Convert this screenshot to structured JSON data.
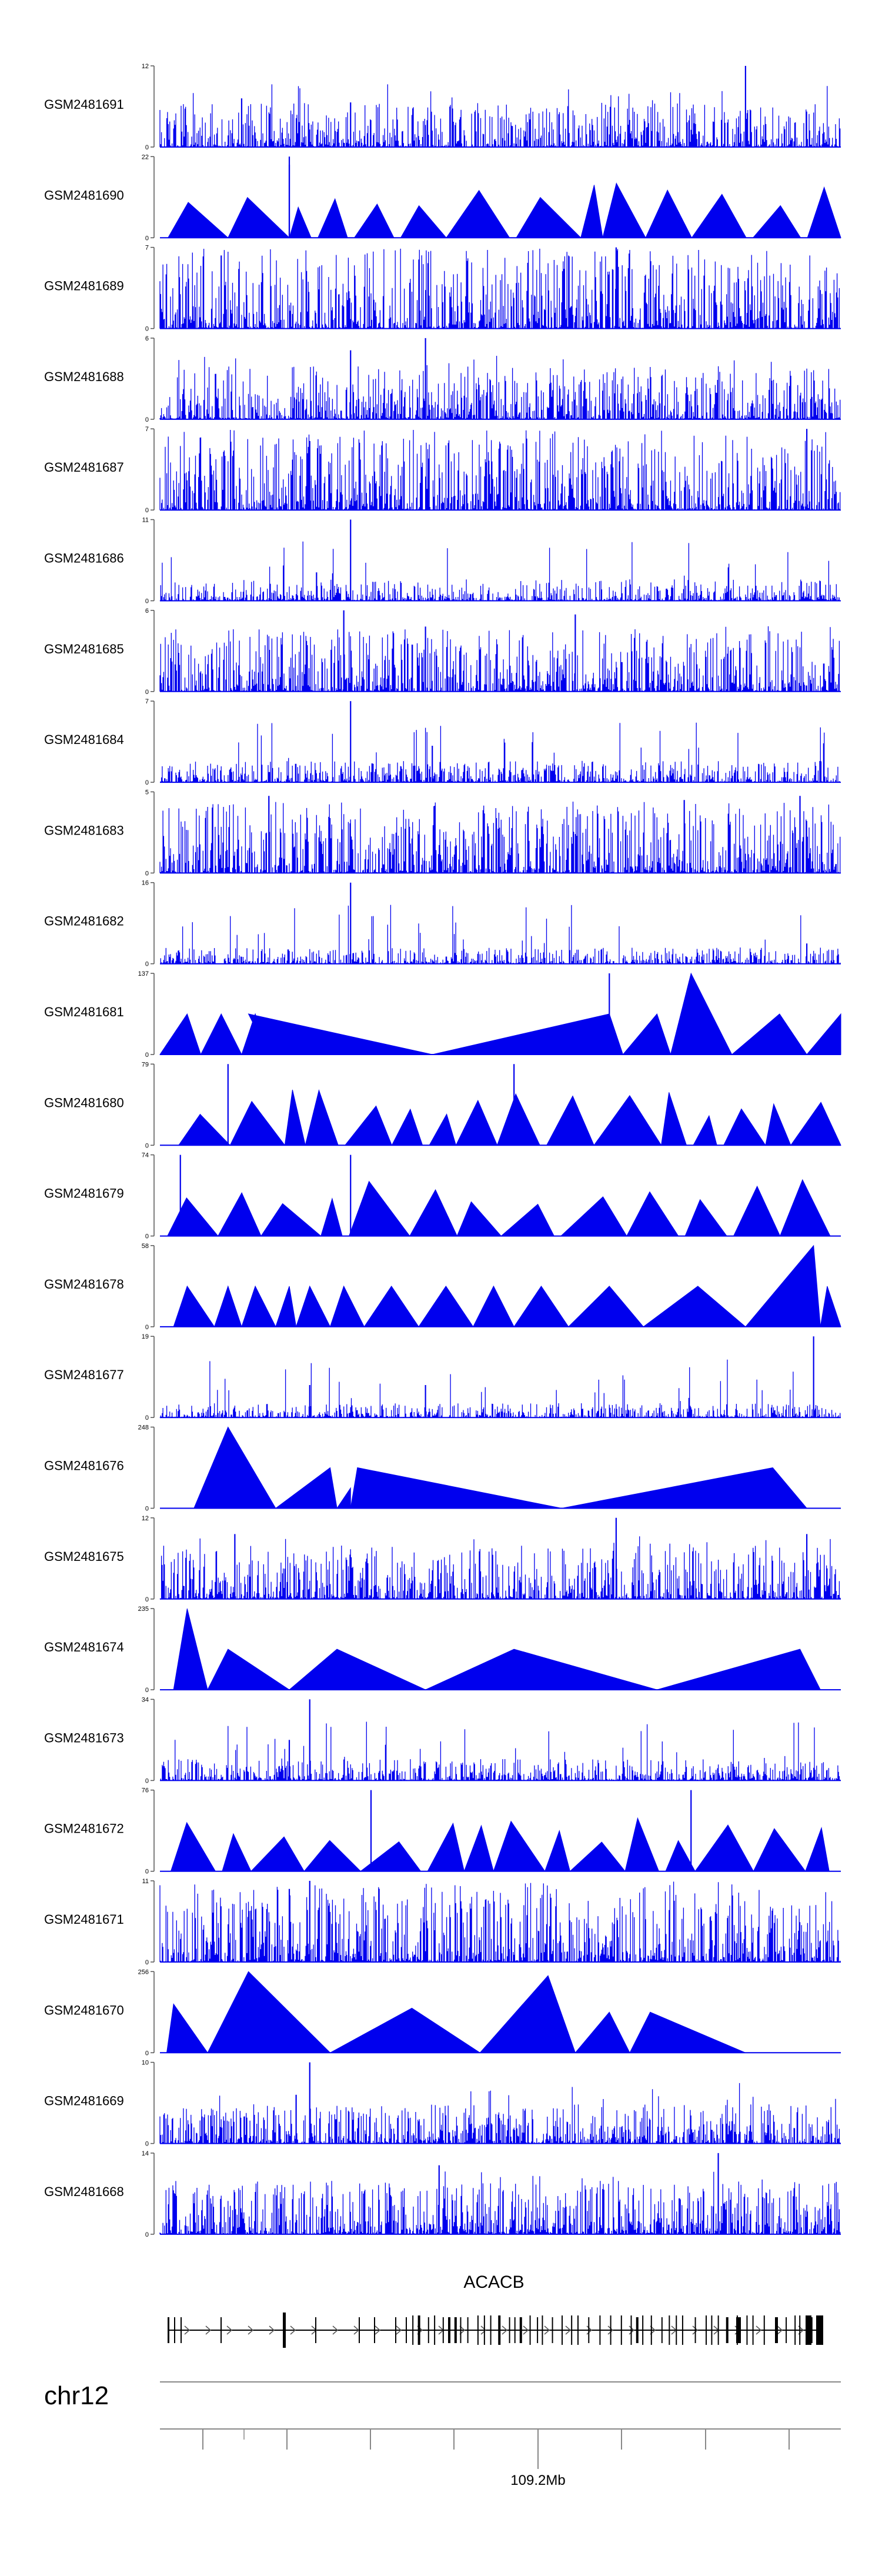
{
  "chart_data": {
    "type": "area",
    "title": "",
    "colors": {
      "signal": "#0000ee",
      "axis": "#555555",
      "gene": "#000000",
      "chrom_line": "#888888"
    },
    "tracks": [
      {
        "name": "GSM2481691",
        "ymax": "12",
        "ymin": "0",
        "style": "dense",
        "seed": 11,
        "base": 0.25,
        "peaks": [
          [
            0.86,
            1.0
          ],
          [
            0.28,
            0.55
          ],
          [
            0.12,
            0.6
          ]
        ]
      },
      {
        "name": "GSM2481690",
        "ymax": "22",
        "ymin": "0",
        "style": "tri",
        "seed": 12,
        "base": 0.5,
        "peaks": [
          [
            0.19,
            1.0
          ],
          [
            0.19,
            0.9
          ]
        ]
      },
      {
        "name": "GSM2481689",
        "ymax": "7",
        "ymin": "0",
        "style": "dense",
        "seed": 13,
        "base": 0.45,
        "peaks": [
          [
            0.67,
            1.0
          ],
          [
            0.09,
            0.9
          ]
        ]
      },
      {
        "name": "GSM2481688",
        "ymax": "6",
        "ymin": "0",
        "style": "dense",
        "seed": 14,
        "base": 0.3,
        "peaks": [
          [
            0.39,
            1.0
          ],
          [
            0.28,
            0.85
          ]
        ]
      },
      {
        "name": "GSM2481687",
        "ymax": "7",
        "ymin": "0",
        "style": "dense",
        "seed": 15,
        "base": 0.45,
        "peaks": [
          [
            0.95,
            1.0
          ],
          [
            0.22,
            0.85
          ]
        ]
      },
      {
        "name": "GSM2481686",
        "ymax": "11",
        "ymin": "0",
        "style": "dense",
        "seed": 16,
        "base": 0.12,
        "peaks": [
          [
            0.28,
            1.0
          ],
          [
            0.23,
            0.35
          ]
        ]
      },
      {
        "name": "GSM2481685",
        "ymax": "6",
        "ymin": "0",
        "style": "dense",
        "seed": 17,
        "base": 0.35,
        "peaks": [
          [
            0.27,
            1.0
          ],
          [
            0.61,
            0.95
          ],
          [
            0.39,
            0.8
          ]
        ]
      },
      {
        "name": "GSM2481684",
        "ymax": "7",
        "ymin": "0",
        "style": "dense",
        "seed": 18,
        "base": 0.12,
        "peaks": [
          [
            0.28,
            1.0
          ],
          [
            0.4,
            0.45
          ]
        ]
      },
      {
        "name": "GSM2481683",
        "ymax": "5",
        "ymin": "0",
        "style": "dense",
        "seed": 19,
        "base": 0.4,
        "peaks": [
          [
            0.16,
            0.95
          ],
          [
            0.94,
            0.95
          ],
          [
            0.77,
            0.9
          ]
        ]
      },
      {
        "name": "GSM2481682",
        "ymax": "16",
        "ymin": "0",
        "style": "dense",
        "seed": 20,
        "base": 0.09,
        "peaks": [
          [
            0.28,
            1.0
          ],
          [
            0.95,
            0.25
          ]
        ]
      },
      {
        "name": "GSM2481681",
        "ymax": "137",
        "ymin": "0",
        "style": "tri",
        "seed": 21,
        "base": 0.5,
        "tri": [
          [
            0.0,
            0.04,
            0.06,
            0.5
          ],
          [
            0.06,
            0.09,
            0.12,
            0.5
          ],
          [
            0.12,
            0.14,
            0.16,
            0.5
          ],
          [
            0.16,
            0.13,
            0.4,
            0.5
          ],
          [
            0.4,
            0.66,
            0.68,
            0.5
          ],
          [
            0.68,
            0.73,
            0.75,
            0.5
          ],
          [
            0.75,
            0.78,
            0.84,
            1.0
          ],
          [
            0.84,
            0.91,
            0.95,
            0.5
          ],
          [
            0.95,
            1.0,
            1.0,
            0.5
          ]
        ],
        "peaks": [
          [
            0.66,
            1.0
          ]
        ]
      },
      {
        "name": "GSM2481680",
        "ymax": "79",
        "ymin": "0",
        "style": "tri",
        "seed": 22,
        "base": 0.45,
        "peaks": [
          [
            0.1,
            1.0
          ],
          [
            0.52,
            1.0
          ]
        ]
      },
      {
        "name": "GSM2481679",
        "ymax": "74",
        "ymin": "0",
        "style": "tri",
        "seed": 23,
        "base": 0.5,
        "peaks": [
          [
            0.03,
            1.0
          ],
          [
            0.28,
            1.0
          ]
        ]
      },
      {
        "name": "GSM2481678",
        "ymax": "58",
        "ymin": "0",
        "style": "tri",
        "seed": 24,
        "base": 0.5,
        "tri": [
          [
            0.02,
            0.04,
            0.08,
            0.5
          ],
          [
            0.08,
            0.1,
            0.12,
            0.5
          ],
          [
            0.12,
            0.14,
            0.17,
            0.5
          ],
          [
            0.17,
            0.19,
            0.2,
            0.5
          ],
          [
            0.2,
            0.22,
            0.25,
            0.5
          ],
          [
            0.25,
            0.27,
            0.3,
            0.5
          ],
          [
            0.3,
            0.34,
            0.38,
            0.5
          ],
          [
            0.38,
            0.42,
            0.46,
            0.5
          ],
          [
            0.46,
            0.49,
            0.52,
            0.5
          ],
          [
            0.52,
            0.56,
            0.6,
            0.5
          ],
          [
            0.6,
            0.66,
            0.71,
            0.5
          ],
          [
            0.71,
            0.79,
            0.86,
            0.5
          ],
          [
            0.86,
            0.96,
            0.97,
            1.0
          ],
          [
            0.97,
            0.98,
            1.0,
            0.5
          ]
        ],
        "peaks": []
      },
      {
        "name": "GSM2481677",
        "ymax": "19",
        "ymin": "0",
        "style": "dense",
        "seed": 25,
        "base": 0.08,
        "peaks": [
          [
            0.96,
            1.0
          ],
          [
            0.39,
            0.4
          ],
          [
            0.22,
            0.4
          ]
        ]
      },
      {
        "name": "GSM2481676",
        "ymax": "248",
        "ymin": "0",
        "style": "tri",
        "seed": 26,
        "base": 0.4,
        "tri": [
          [
            0.05,
            0.1,
            0.17,
            1.0
          ],
          [
            0.17,
            0.25,
            0.26,
            0.5
          ],
          [
            0.26,
            0.28,
            0.28,
            0.25
          ],
          [
            0.28,
            0.29,
            0.59,
            0.5
          ],
          [
            0.59,
            0.9,
            0.95,
            0.5
          ]
        ],
        "peaks": []
      },
      {
        "name": "GSM2481675",
        "ymax": "12",
        "ymin": "0",
        "style": "dense",
        "seed": 27,
        "base": 0.3,
        "peaks": [
          [
            0.67,
            1.0
          ],
          [
            0.95,
            0.8
          ],
          [
            0.11,
            0.8
          ]
        ]
      },
      {
        "name": "GSM2481674",
        "ymax": "235",
        "ymin": "0",
        "style": "tri",
        "seed": 28,
        "base": 0.5,
        "tri": [
          [
            0.02,
            0.04,
            0.07,
            1.0
          ],
          [
            0.07,
            0.1,
            0.19,
            0.5
          ],
          [
            0.19,
            0.26,
            0.39,
            0.5
          ],
          [
            0.39,
            0.52,
            0.73,
            0.5
          ],
          [
            0.73,
            0.94,
            0.97,
            0.5
          ]
        ],
        "peaks": []
      },
      {
        "name": "GSM2481673",
        "ymax": "34",
        "ymin": "0",
        "style": "dense",
        "seed": 29,
        "base": 0.12,
        "peaks": [
          [
            0.22,
            1.0
          ],
          [
            0.19,
            0.5
          ]
        ]
      },
      {
        "name": "GSM2481672",
        "ymax": "76",
        "ymin": "0",
        "style": "tri",
        "seed": 30,
        "base": 0.5,
        "peaks": [
          [
            0.31,
            1.0
          ],
          [
            0.78,
            1.0
          ]
        ]
      },
      {
        "name": "GSM2481671",
        "ymax": "11",
        "ymin": "0",
        "style": "dense",
        "seed": 31,
        "base": 0.45,
        "peaks": [
          [
            0.22,
            1.0
          ],
          [
            0.19,
            0.9
          ]
        ]
      },
      {
        "name": "GSM2481670",
        "ymax": "256",
        "ymin": "0",
        "style": "tri",
        "seed": 32,
        "base": 0.5,
        "tri": [
          [
            0.01,
            0.02,
            0.07,
            0.6
          ],
          [
            0.07,
            0.13,
            0.25,
            1.0
          ],
          [
            0.25,
            0.37,
            0.47,
            0.55
          ],
          [
            0.47,
            0.57,
            0.61,
            0.95
          ],
          [
            0.61,
            0.66,
            0.69,
            0.5
          ],
          [
            0.69,
            0.72,
            0.86,
            0.5
          ]
        ],
        "peaks": []
      },
      {
        "name": "GSM2481669",
        "ymax": "10",
        "ymin": "0",
        "style": "dense",
        "seed": 33,
        "base": 0.22,
        "peaks": [
          [
            0.22,
            1.0
          ],
          [
            0.2,
            0.6
          ]
        ]
      },
      {
        "name": "GSM2481668",
        "ymax": "14",
        "ymin": "0",
        "style": "dense",
        "seed": 34,
        "base": 0.3,
        "peaks": [
          [
            0.82,
            1.0
          ],
          [
            0.41,
            0.85
          ]
        ]
      }
    ],
    "gene": {
      "name": "ACACB"
    },
    "chromosome": {
      "name": "chr12",
      "tick_label": "109.2Mb"
    }
  }
}
